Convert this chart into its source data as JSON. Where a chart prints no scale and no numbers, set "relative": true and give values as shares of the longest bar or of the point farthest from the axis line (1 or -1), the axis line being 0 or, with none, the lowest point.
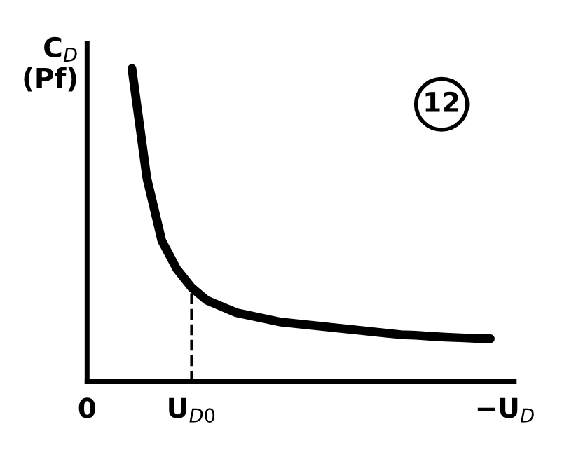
{
  "chart_data": {
    "type": "line",
    "relative": true,
    "ylabel": "C$_{D}$\n(Pf)",
    "categories": [
      "0",
      null,
      null,
      null,
      null,
      null,
      null,
      "U$_{D0}$",
      null,
      null,
      null,
      null,
      null,
      null,
      null,
      null,
      null,
      null,
      null,
      null,
      null,
      null,
      null,
      null,
      null,
      null,
      null,
      null,
      "−U$_{D}$"
    ],
    "series": [
      {
        "color": "#000000",
        "values": [
          null,
          null,
          null,
          1.0,
          0.65,
          0.45,
          0.36,
          0.3,
          0.26,
          0.24,
          0.22,
          0.21,
          0.2,
          0.19,
          0.185,
          0.18,
          0.175,
          0.17,
          0.165,
          0.16,
          0.155,
          0.15,
          0.148,
          0.145,
          0.142,
          0.14,
          0.138,
          0.137,
          null
        ]
      }
    ],
    "ref_lines": [
      {
        "axis": "x",
        "value": "U$_{D0}$",
        "line_style": "dashed",
        "color": "#000000"
      }
    ],
    "annotations": [
      "12"
    ],
    "legend": false,
    "marker": "none",
    "line_style": "solid"
  }
}
